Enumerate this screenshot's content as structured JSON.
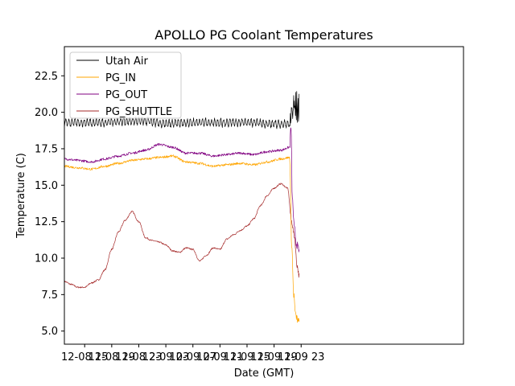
{
  "chart_data": {
    "type": "line",
    "title": "APOLLO PG Coolant Temperatures",
    "xlabel": "Date (GMT)",
    "ylabel": "Temperature (C)",
    "xlim": [
      12,
      71
    ],
    "ylim": [
      4.1,
      24.5
    ],
    "x_unit": "hours since 12-08 00:00 GMT",
    "x_ticks": [
      {
        "value": 15,
        "label": "12-08 15"
      },
      {
        "value": 19,
        "label": "12-08 19"
      },
      {
        "value": 23,
        "label": "12-08 23"
      },
      {
        "value": 27,
        "label": "12-09 03"
      },
      {
        "value": 31,
        "label": "12-09 07"
      },
      {
        "value": 35,
        "label": "12-09 11"
      },
      {
        "value": 39,
        "label": "12-09 15"
      },
      {
        "value": 43,
        "label": "12-09 19"
      },
      {
        "value": 47,
        "label": "12-09 23"
      }
    ],
    "y_ticks": [
      {
        "value": 5.0,
        "label": "5.0"
      },
      {
        "value": 7.5,
        "label": "7.5"
      },
      {
        "value": 10.0,
        "label": "10.0"
      },
      {
        "value": 12.5,
        "label": "12.5"
      },
      {
        "value": 15.0,
        "label": "15.0"
      },
      {
        "value": 17.5,
        "label": "17.5"
      },
      {
        "value": 20.0,
        "label": "20.0"
      },
      {
        "value": 22.5,
        "label": "22.5"
      }
    ],
    "legend_position": "top-left",
    "series": [
      {
        "name": "Utah Air",
        "color": "#000000",
        "noise": 0.35,
        "points": [
          [
            12.0,
            19.3
          ],
          [
            18.0,
            19.3
          ],
          [
            21.0,
            19.4
          ],
          [
            24.0,
            19.4
          ],
          [
            27.0,
            19.2
          ],
          [
            31.0,
            19.3
          ],
          [
            35.0,
            19.3
          ],
          [
            39.0,
            19.3
          ],
          [
            43.0,
            19.2
          ],
          [
            45.3,
            19.2
          ],
          [
            45.6,
            20.0
          ],
          [
            46.0,
            20.3
          ],
          [
            46.7,
            20.3
          ]
        ]
      },
      {
        "name": "PG_IN",
        "color": "#ffa500",
        "noise": 0.08,
        "points": [
          [
            12.0,
            16.3
          ],
          [
            14.0,
            16.2
          ],
          [
            16.0,
            16.1
          ],
          [
            18.0,
            16.3
          ],
          [
            20.0,
            16.5
          ],
          [
            22.0,
            16.7
          ],
          [
            24.0,
            16.8
          ],
          [
            26.0,
            16.9
          ],
          [
            28.0,
            17.0
          ],
          [
            30.0,
            16.6
          ],
          [
            32.0,
            16.5
          ],
          [
            34.0,
            16.3
          ],
          [
            36.0,
            16.4
          ],
          [
            38.0,
            16.5
          ],
          [
            40.0,
            16.4
          ],
          [
            42.0,
            16.6
          ],
          [
            44.0,
            16.8
          ],
          [
            45.3,
            16.9
          ],
          [
            45.6,
            11.0
          ],
          [
            45.9,
            7.5
          ],
          [
            46.2,
            6.0
          ],
          [
            46.7,
            5.6
          ]
        ]
      },
      {
        "name": "PG_OUT",
        "color": "#800080",
        "noise": 0.08,
        "points": [
          [
            12.0,
            16.8
          ],
          [
            14.0,
            16.7
          ],
          [
            16.0,
            16.6
          ],
          [
            18.0,
            16.8
          ],
          [
            20.0,
            17.0
          ],
          [
            22.0,
            17.2
          ],
          [
            24.0,
            17.4
          ],
          [
            26.0,
            17.8
          ],
          [
            28.0,
            17.6
          ],
          [
            30.0,
            17.2
          ],
          [
            32.0,
            17.2
          ],
          [
            34.0,
            17.0
          ],
          [
            36.0,
            17.1
          ],
          [
            38.0,
            17.2
          ],
          [
            40.0,
            17.1
          ],
          [
            42.0,
            17.3
          ],
          [
            44.0,
            17.4
          ],
          [
            45.3,
            17.6
          ],
          [
            45.5,
            19.0
          ],
          [
            45.7,
            14.0
          ],
          [
            46.0,
            12.0
          ],
          [
            46.3,
            11.0
          ],
          [
            46.7,
            10.5
          ]
        ]
      },
      {
        "name": "PG_SHUTTLE",
        "color": "#a52a2a",
        "noise": 0.05,
        "points": [
          [
            12.0,
            8.4
          ],
          [
            13.0,
            8.2
          ],
          [
            14.0,
            8.0
          ],
          [
            15.0,
            8.0
          ],
          [
            16.0,
            8.3
          ],
          [
            17.0,
            8.5
          ],
          [
            18.0,
            9.2
          ],
          [
            19.0,
            10.6
          ],
          [
            20.0,
            11.8
          ],
          [
            21.0,
            12.6
          ],
          [
            22.0,
            13.2
          ],
          [
            23.0,
            12.5
          ],
          [
            24.0,
            11.4
          ],
          [
            25.0,
            11.2
          ],
          [
            26.0,
            11.1
          ],
          [
            27.0,
            10.9
          ],
          [
            28.0,
            10.5
          ],
          [
            29.0,
            10.4
          ],
          [
            30.0,
            10.7
          ],
          [
            31.0,
            10.6
          ],
          [
            32.0,
            9.8
          ],
          [
            33.0,
            10.2
          ],
          [
            34.0,
            10.7
          ],
          [
            35.0,
            10.6
          ],
          [
            36.0,
            11.3
          ],
          [
            37.0,
            11.6
          ],
          [
            38.0,
            11.9
          ],
          [
            39.0,
            12.2
          ],
          [
            40.0,
            12.7
          ],
          [
            41.0,
            13.6
          ],
          [
            42.0,
            14.3
          ],
          [
            43.0,
            14.8
          ],
          [
            44.0,
            15.1
          ],
          [
            45.0,
            14.8
          ],
          [
            45.6,
            12.5
          ],
          [
            46.0,
            11.5
          ],
          [
            46.4,
            9.5
          ],
          [
            46.7,
            8.8
          ]
        ]
      }
    ]
  }
}
